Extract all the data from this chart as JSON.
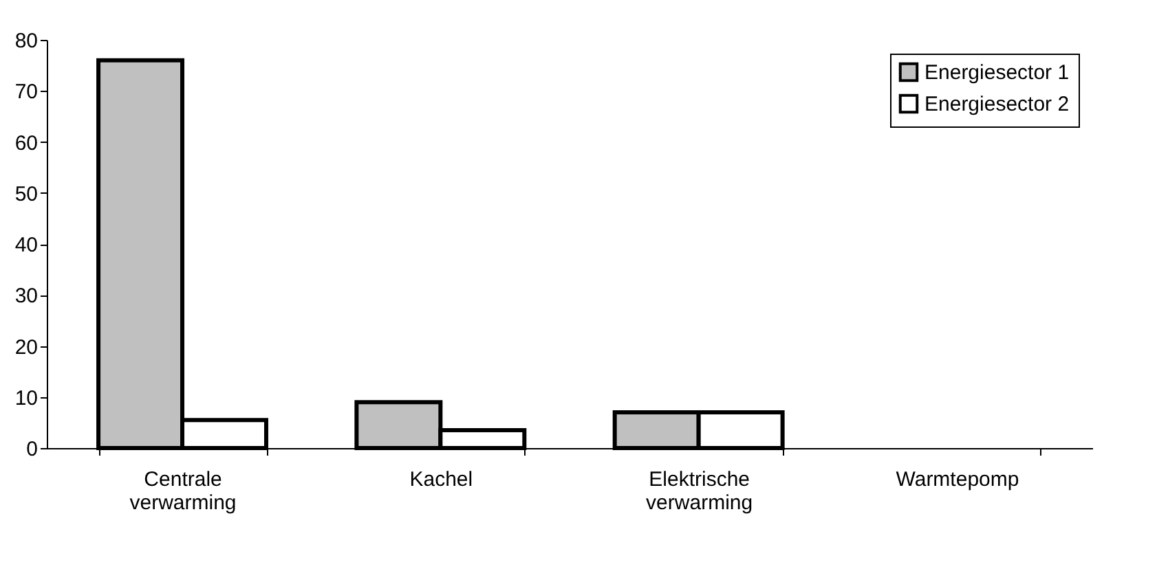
{
  "chart_data": {
    "type": "bar",
    "categories": [
      "Centrale verwarming",
      "Kachel",
      "Elektrische verwarming",
      "Warmtepomp"
    ],
    "series": [
      {
        "name": "Energiesector 1",
        "color": "#c0c0c0",
        "values": [
          76,
          9,
          7,
          0
        ]
      },
      {
        "name": "Energiesector 2",
        "color": "#ffffff",
        "values": [
          5.5,
          3.5,
          7,
          0
        ]
      }
    ],
    "ylim": [
      0,
      80
    ],
    "yticks": [
      0,
      10,
      20,
      30,
      40,
      50,
      60,
      70,
      80
    ],
    "grid": false,
    "legend": "top right"
  }
}
